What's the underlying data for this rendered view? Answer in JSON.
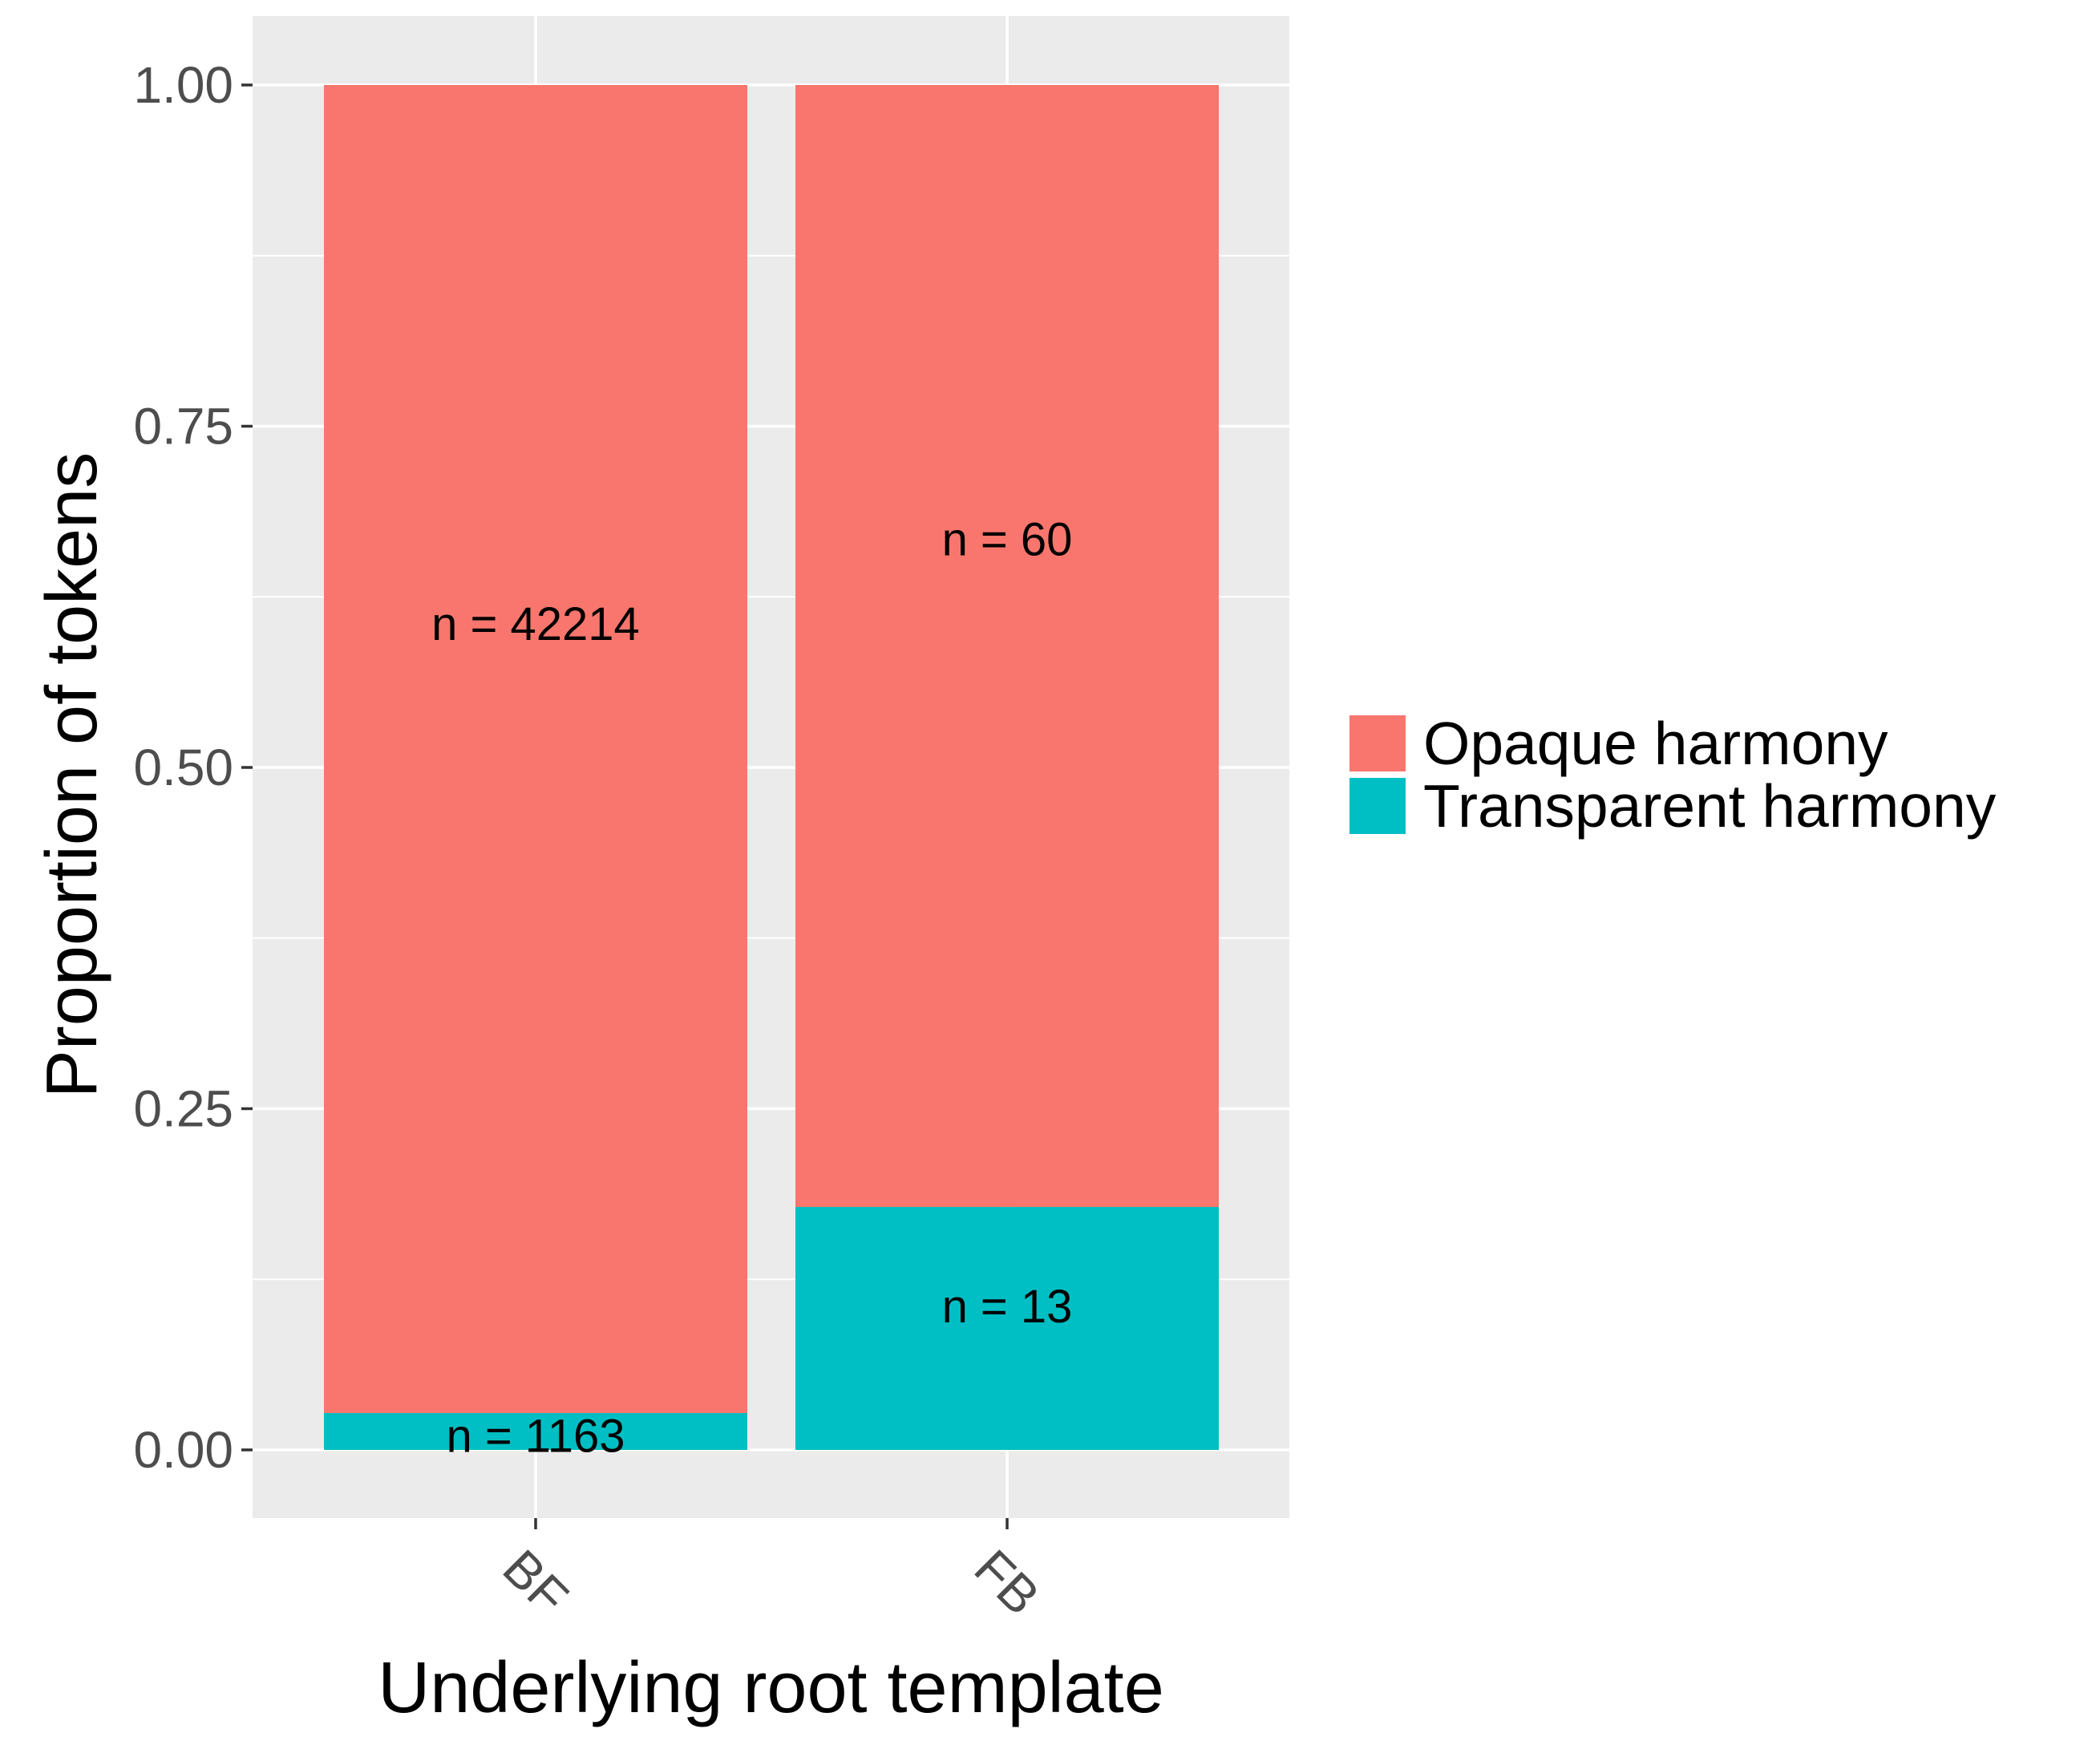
{
  "chart_data": {
    "type": "bar",
    "stacked": true,
    "normalized": true,
    "xlabel": "Underlying root template",
    "ylabel": "Proportion of tokens",
    "categories": [
      "BF",
      "FB"
    ],
    "ylim": [
      0,
      1
    ],
    "y_ticks": [
      "0.00",
      "0.25",
      "0.50",
      "0.75",
      "1.00"
    ],
    "grid": true,
    "legend_position": "right",
    "series": [
      {
        "name": "Transparent harmony",
        "color": "#00BFC4",
        "counts": [
          1163,
          13
        ],
        "values": [
          0.027,
          0.178
        ],
        "labels": [
          "n = 1163",
          "n = 13"
        ]
      },
      {
        "name": "Opaque harmony",
        "color": "#F8766D",
        "counts": [
          42214,
          60
        ],
        "values": [
          0.973,
          0.822
        ],
        "labels": [
          "n = 42214",
          "n = 60"
        ]
      }
    ],
    "legend_order": [
      "Opaque harmony",
      "Transparent harmony"
    ]
  }
}
